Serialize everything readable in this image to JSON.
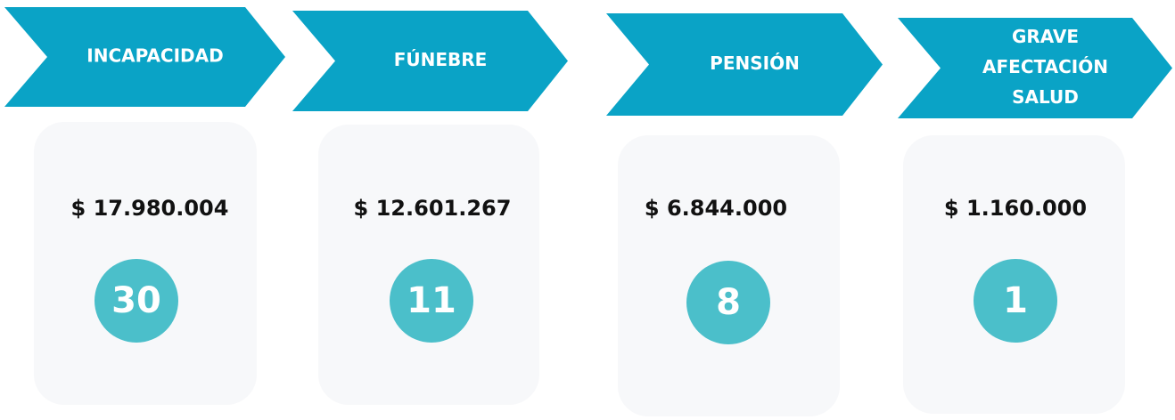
{
  "items": [
    {
      "label": [
        "INCAPACIDAD"
      ],
      "amount": "$ 17.980.004",
      "count": 30
    },
    {
      "label": [
        "FÚNEBRE"
      ],
      "amount": "$ 12.601.267",
      "count": 11
    },
    {
      "label": [
        "PENSIÓN"
      ],
      "amount": "$ 6.844.000",
      "count": 8
    },
    {
      "label": [
        "GRAVE",
        "AFECTACIÓN",
        "SALUD"
      ],
      "amount": "$ 1.160.000",
      "count": 1
    }
  ]
}
